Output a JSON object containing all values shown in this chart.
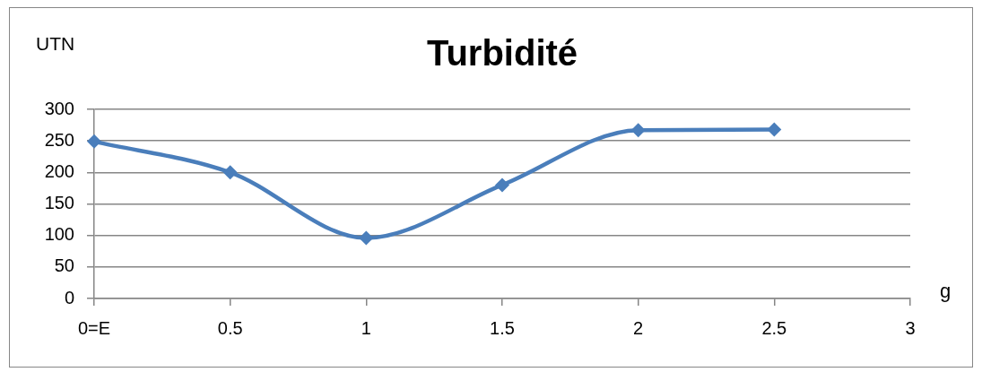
{
  "chart_data": {
    "type": "line",
    "title": "Turbidité",
    "xlabel": "g",
    "ylabel": "UTN",
    "x": [
      0,
      0.5,
      1,
      1.5,
      2,
      2.5
    ],
    "series": [
      {
        "color": "#4a7ebb",
        "values": [
          249,
          200,
          96,
          180,
          267,
          268
        ]
      }
    ],
    "xlim": [
      0,
      3
    ],
    "xticks": [
      {
        "value": 0,
        "label": "0=E"
      },
      0.5,
      1,
      1.5,
      2,
      2.5,
      3
    ],
    "ylim": [
      0,
      300
    ],
    "yticks": [
      0,
      50,
      100,
      150,
      200,
      250,
      300
    ],
    "grid": "y",
    "legend": false,
    "marker": "diamond",
    "line_style": "solid"
  }
}
